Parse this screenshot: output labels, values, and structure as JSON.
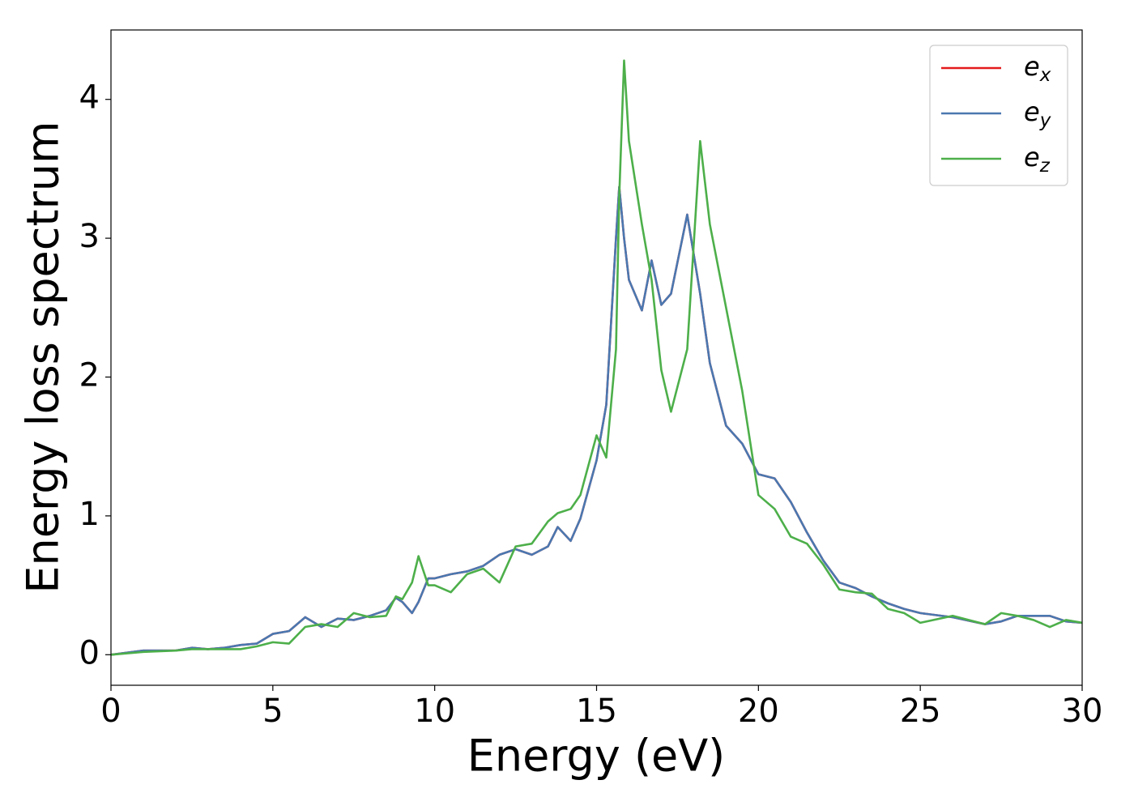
{
  "chart_data": {
    "type": "line",
    "xlabel": "Energy (eV)",
    "ylabel": "Energy loss spectrum",
    "x": [
      0,
      1,
      2,
      2.5,
      3,
      3.5,
      4,
      4.5,
      5,
      5.5,
      6,
      6.5,
      7,
      7.5,
      8,
      8.5,
      8.8,
      9,
      9.3,
      9.5,
      9.8,
      10,
      10.5,
      11,
      11.5,
      12,
      12.5,
      13,
      13.5,
      13.8,
      14.2,
      14.5,
      15,
      15.3,
      15.6,
      15.7,
      15.85,
      16,
      16.4,
      16.7,
      17,
      17.3,
      17.8,
      18.2,
      18.5,
      19,
      19.5,
      20,
      20.5,
      21,
      21.5,
      22,
      22.5,
      23,
      23.5,
      24,
      24.5,
      25,
      26,
      27,
      27.5,
      28,
      28.5,
      29,
      29.5,
      30
    ],
    "series": [
      {
        "name": "e_x",
        "color": "#e41a1c",
        "values": [
          0,
          0.03,
          0.03,
          0.05,
          0.04,
          0.05,
          0.07,
          0.08,
          0.15,
          0.17,
          0.27,
          0.2,
          0.26,
          0.25,
          0.28,
          0.32,
          0.41,
          0.38,
          0.3,
          0.38,
          0.55,
          0.55,
          0.58,
          0.6,
          0.64,
          0.72,
          0.76,
          0.72,
          0.78,
          0.92,
          0.82,
          0.98,
          1.4,
          1.8,
          3.0,
          3.37,
          3.0,
          2.7,
          2.48,
          2.84,
          2.52,
          2.6,
          3.17,
          2.6,
          2.1,
          1.65,
          1.52,
          1.3,
          1.27,
          1.1,
          0.88,
          0.68,
          0.52,
          0.48,
          0.42,
          0.37,
          0.33,
          0.3,
          0.27,
          0.22,
          0.24,
          0.28,
          0.28,
          0.28,
          0.24,
          0.23
        ]
      },
      {
        "name": "e_y",
        "color": "#4a78b0",
        "values": [
          0,
          0.03,
          0.03,
          0.05,
          0.04,
          0.05,
          0.07,
          0.08,
          0.15,
          0.17,
          0.27,
          0.2,
          0.26,
          0.25,
          0.28,
          0.32,
          0.41,
          0.38,
          0.3,
          0.38,
          0.55,
          0.55,
          0.58,
          0.6,
          0.64,
          0.72,
          0.76,
          0.72,
          0.78,
          0.92,
          0.82,
          0.98,
          1.4,
          1.8,
          3.0,
          3.37,
          3.0,
          2.7,
          2.48,
          2.84,
          2.52,
          2.6,
          3.17,
          2.6,
          2.1,
          1.65,
          1.52,
          1.3,
          1.27,
          1.1,
          0.88,
          0.68,
          0.52,
          0.48,
          0.42,
          0.37,
          0.33,
          0.3,
          0.27,
          0.22,
          0.24,
          0.28,
          0.28,
          0.28,
          0.24,
          0.23
        ]
      },
      {
        "name": "e_z",
        "color": "#4daf4a",
        "values": [
          0,
          0.02,
          0.03,
          0.04,
          0.04,
          0.04,
          0.04,
          0.06,
          0.09,
          0.08,
          0.2,
          0.22,
          0.2,
          0.3,
          0.27,
          0.28,
          0.42,
          0.4,
          0.52,
          0.71,
          0.5,
          0.5,
          0.45,
          0.58,
          0.62,
          0.52,
          0.78,
          0.8,
          0.96,
          1.02,
          1.05,
          1.15,
          1.58,
          1.42,
          2.2,
          3.3,
          4.28,
          3.7,
          3.1,
          2.7,
          2.05,
          1.75,
          2.2,
          3.7,
          3.1,
          2.5,
          1.9,
          1.15,
          1.05,
          0.85,
          0.8,
          0.65,
          0.47,
          0.45,
          0.44,
          0.33,
          0.3,
          0.23,
          0.28,
          0.22,
          0.3,
          0.28,
          0.25,
          0.2,
          0.25,
          0.23
        ]
      }
    ],
    "xlim": [
      0,
      30
    ],
    "xticks": [
      0,
      5,
      10,
      15,
      20,
      25,
      30
    ],
    "ylim": [
      -0.22,
      4.5
    ],
    "yticks": [
      0,
      1,
      2,
      3,
      4
    ],
    "legend": "upper right",
    "grid": false
  }
}
